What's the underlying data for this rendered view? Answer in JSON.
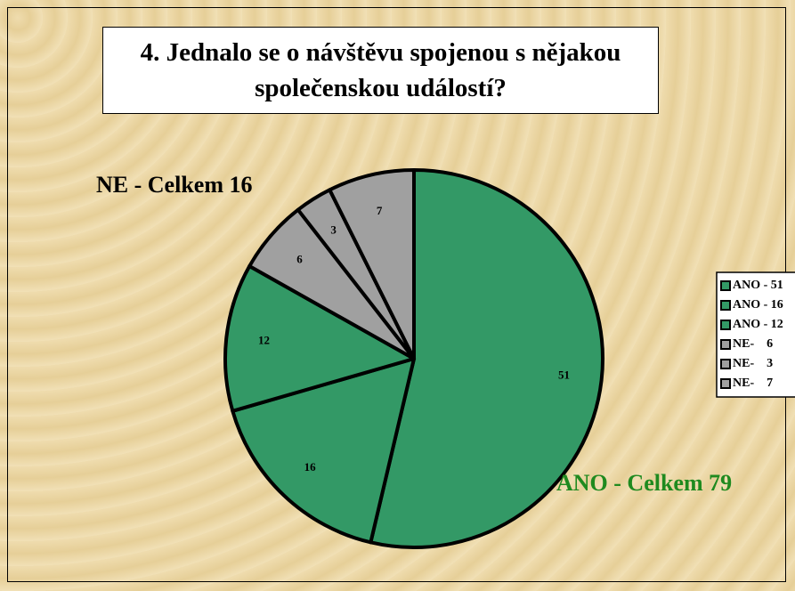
{
  "chart_data": {
    "type": "pie",
    "title": "4. Jednalo se o návštěvu spojenou s nějakou společenskou událostí?",
    "categories": [
      "ANO - 51",
      "ANO - 16",
      "ANO - 12",
      "NE-    6",
      "NE-    3",
      "NE-    7"
    ],
    "values": [
      51,
      16,
      12,
      6,
      3,
      7
    ],
    "colors": [
      "#339966",
      "#339966",
      "#339966",
      "#a0a0a0",
      "#a0a0a0",
      "#a0a0a0"
    ],
    "annotations": [
      {
        "text": "NE - Celkem 16",
        "color": "#000000"
      },
      {
        "text": "ANO - Celkem 79",
        "color": "#1f8a1f"
      }
    ],
    "legend": "right"
  }
}
